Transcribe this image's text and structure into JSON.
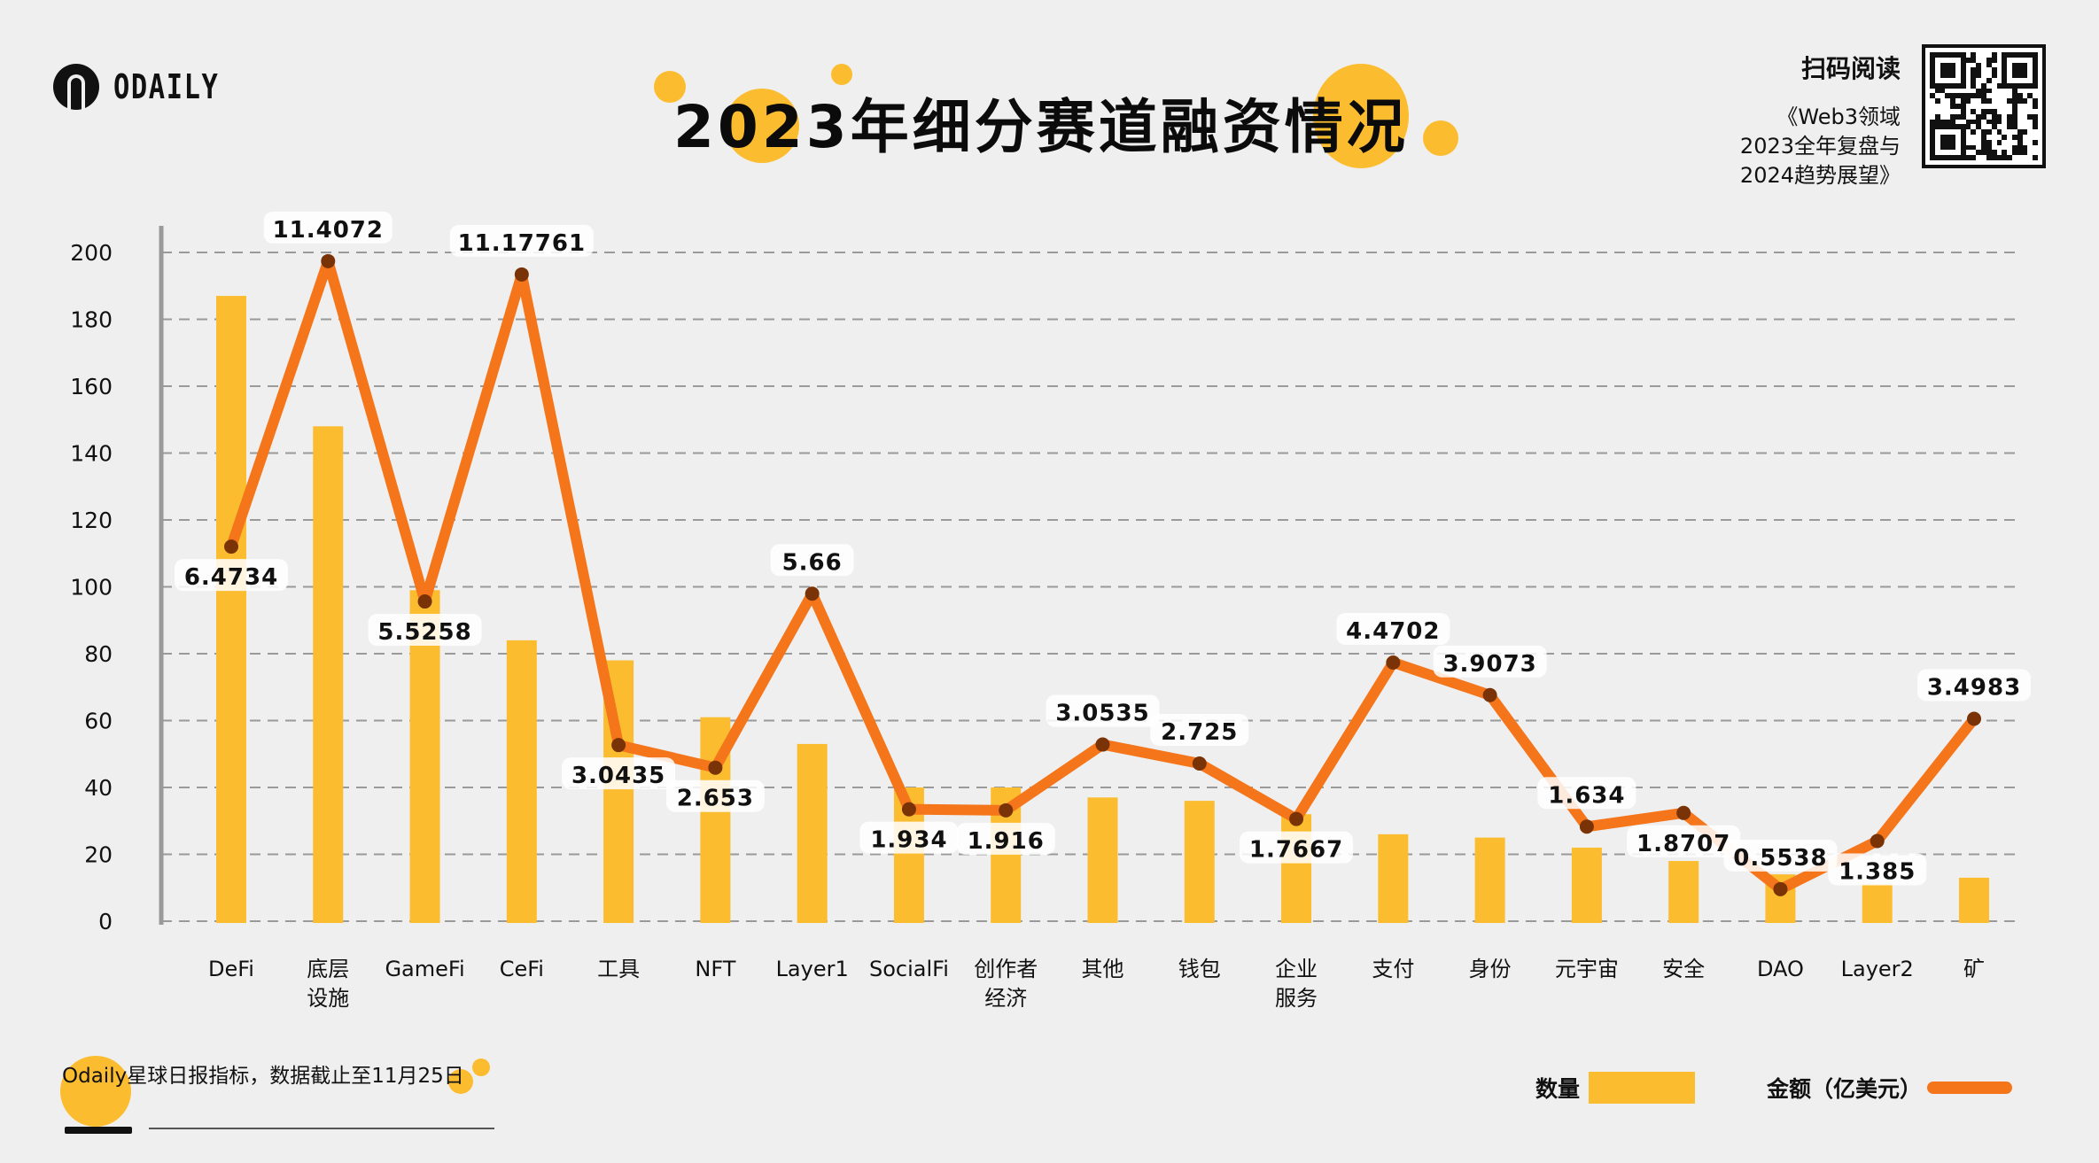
{
  "brand": {
    "logo_text": "ODAILY"
  },
  "header": {
    "title": "2023年细分赛道融资情况"
  },
  "qr_panel": {
    "title": "扫码阅读",
    "subtitle_lines": [
      "《Web3领域",
      "2023全年复盘与",
      "2024趋势展望》"
    ],
    "icon": "qr-code-icon"
  },
  "footer": {
    "source_brand": "Odaily",
    "source_text": "星球日报指标，数据截止至11月",
    "date_day": "25",
    "date_suffix": "日"
  },
  "legend": {
    "count_label": "数量",
    "amount_label": "金额（亿美元）"
  },
  "colors": {
    "bar": "#fbbd2f",
    "line": "#f4751a",
    "marker": "#7a3306",
    "grid": "#9a9a9a",
    "background": "#efefef"
  },
  "chart_data": {
    "type": "bar+line",
    "title": "2023年细分赛道融资情况",
    "categories": [
      [
        "DeFi"
      ],
      [
        "底层",
        "设施"
      ],
      [
        "GameFi"
      ],
      [
        "CeFi"
      ],
      [
        "工具"
      ],
      [
        "NFT"
      ],
      [
        "Layer1"
      ],
      [
        "SocialFi"
      ],
      [
        "创作者",
        "经济"
      ],
      [
        "其他"
      ],
      [
        "钱包"
      ],
      [
        "企业",
        "服务"
      ],
      [
        "支付"
      ],
      [
        "身份"
      ],
      [
        "元宇宙"
      ],
      [
        "安全"
      ],
      [
        "DAO"
      ],
      [
        "Layer2"
      ],
      [
        "矿"
      ]
    ],
    "series": [
      {
        "name": "数量",
        "type": "bar",
        "axis": "left",
        "values": [
          187,
          148,
          99,
          84,
          78,
          61,
          53,
          40,
          40,
          37,
          36,
          32,
          26,
          25,
          22,
          18,
          14,
          11,
          13
        ]
      },
      {
        "name": "金额（亿美元）",
        "type": "line",
        "axis": "secondary",
        "values": [
          6.4734,
          11.4072,
          5.5258,
          11.17761,
          3.0435,
          2.653,
          5.66,
          1.934,
          1.916,
          3.0535,
          2.725,
          1.7667,
          4.4702,
          3.9073,
          1.634,
          1.8707,
          0.5538,
          1.385,
          3.4983
        ],
        "labels": [
          "6.4734",
          "11.4072",
          "5.5258",
          "11.17761",
          "3.0435",
          "2.653",
          "5.66",
          "1.934",
          "1.916",
          "3.0535",
          "2.725",
          "1.7667",
          "4.4702",
          "3.9073",
          "1.634",
          "1.8707",
          "0.5538",
          "1.385",
          "3.4983"
        ],
        "label_position": [
          "below",
          "above",
          "below",
          "above",
          "below",
          "below",
          "above",
          "below",
          "below",
          "above",
          "above",
          "below",
          "above",
          "above",
          "above",
          "below",
          "above",
          "below",
          "above"
        ]
      }
    ],
    "yaxis_left": {
      "ticks": [
        0,
        20,
        40,
        60,
        80,
        100,
        120,
        140,
        160,
        180,
        200
      ],
      "ylim": [
        0,
        200
      ]
    },
    "yaxis_secondary": {
      "ylim": [
        0,
        11.5
      ],
      "visible": false
    },
    "grid": true,
    "legend_position": "bottom-right",
    "xlabel": "",
    "ylabel": ""
  }
}
